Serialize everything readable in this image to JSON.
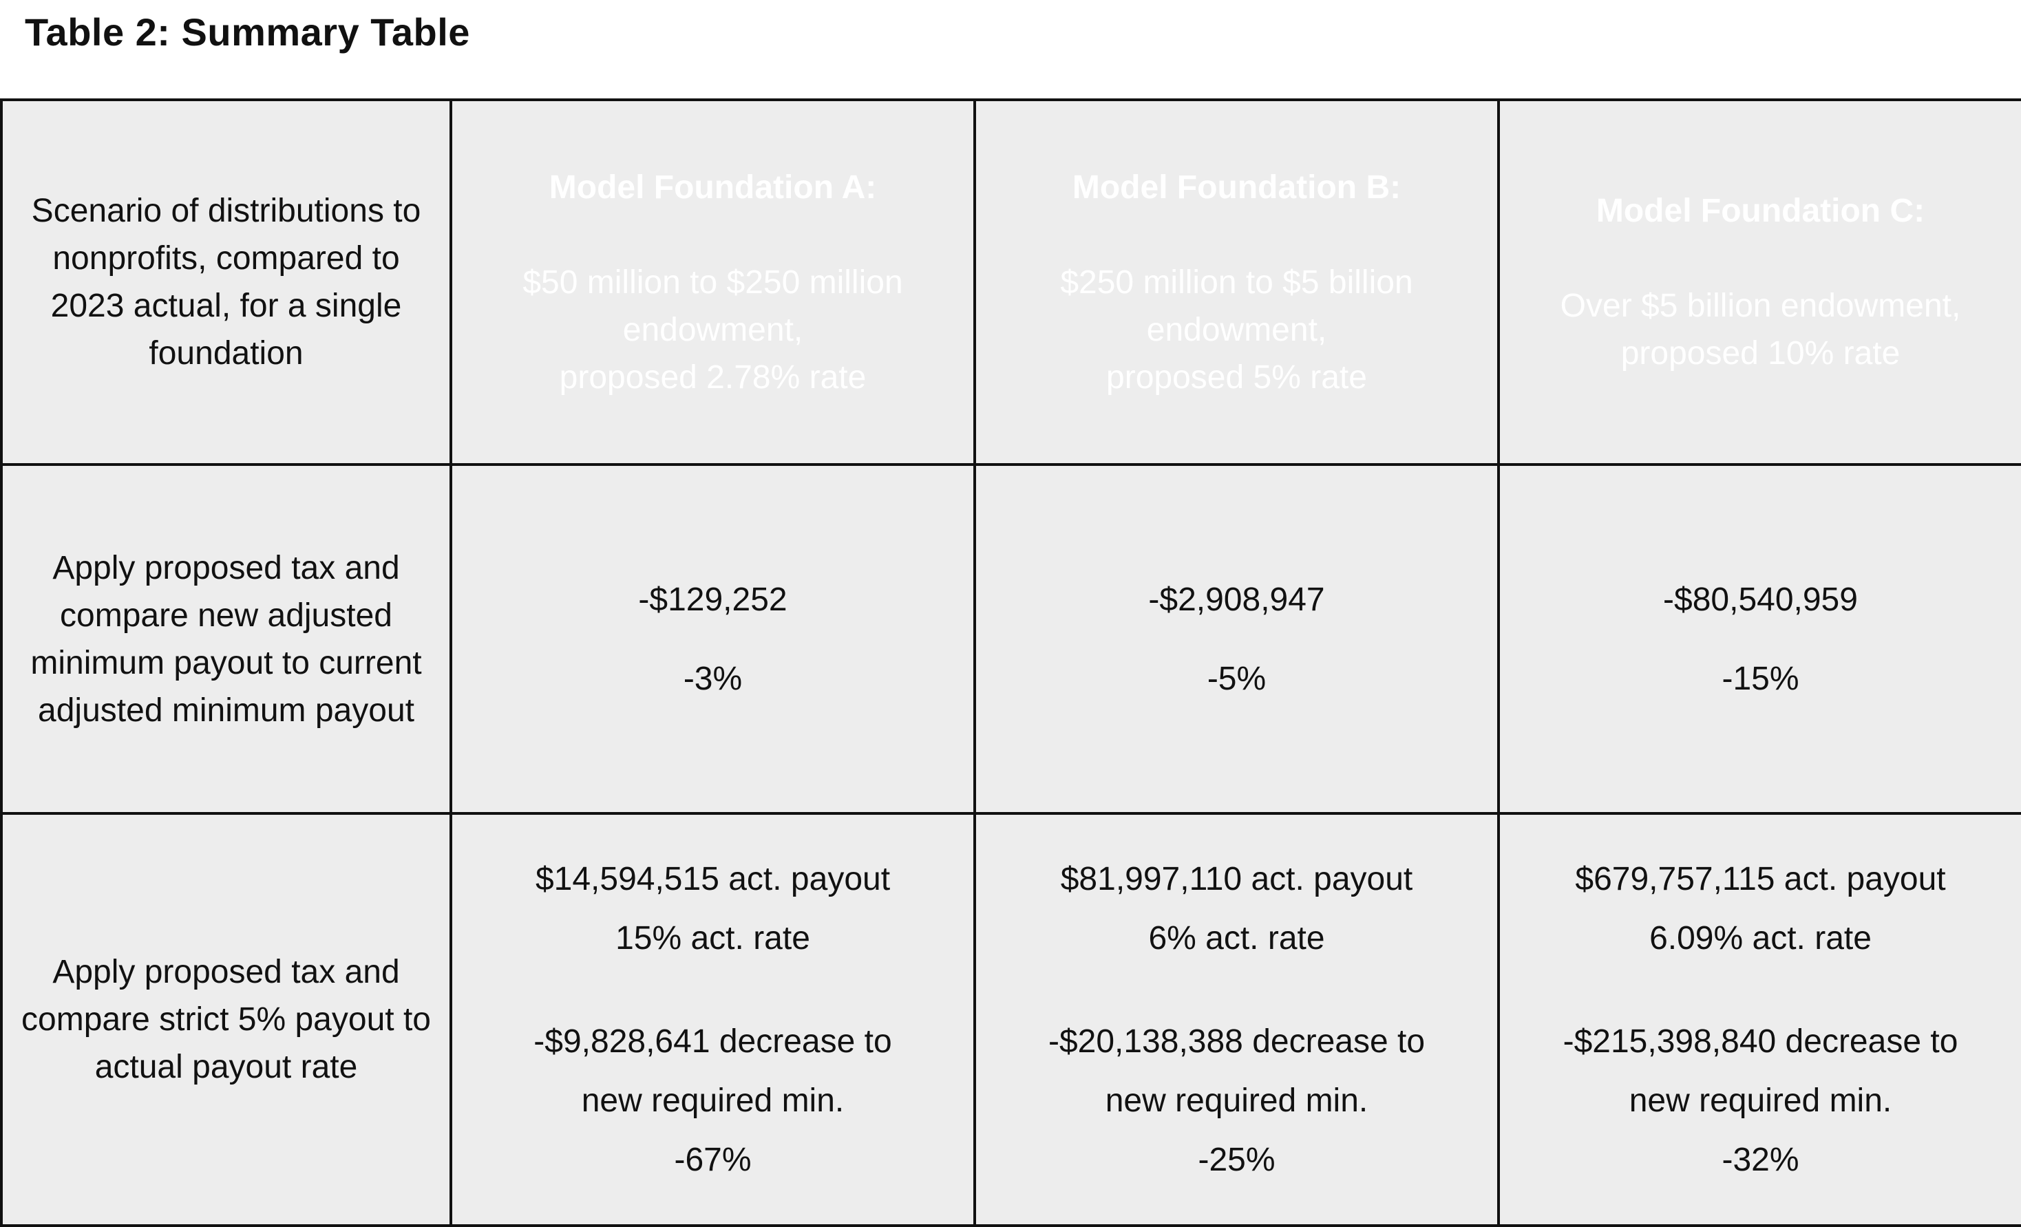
{
  "caption": "Table 2: Summary Table",
  "header": {
    "row_label": "Scenario of distributions to nonprofits, compared to 2023 actual, for a single foundation",
    "columns": [
      {
        "title": "Model Foundation A:",
        "line1": "$50 million to $250 million",
        "line2": "endowment,",
        "line3": "proposed 2.78% rate"
      },
      {
        "title": "Model Foundation B:",
        "line1": "$250 million to $5 billion",
        "line2": "endowment,",
        "line3": "proposed 5% rate"
      },
      {
        "title": "Model Foundation C:",
        "line1": "Over $5 billion endowment,",
        "line2": "proposed 10% rate"
      }
    ]
  },
  "rows": [
    {
      "label": "Apply proposed tax and compare new adjusted minimum payout to current adjusted minimum payout",
      "cells": [
        {
          "amount": "-$129,252",
          "percent": "-3%"
        },
        {
          "amount": "-$2,908,947",
          "percent": "-5%"
        },
        {
          "amount": "-$80,540,959",
          "percent": "-15%"
        }
      ]
    },
    {
      "label": "Apply proposed tax and compare strict 5% payout to actual payout rate",
      "cells": [
        {
          "payout": "$14,594,515 act. payout",
          "rate": "15% act. rate",
          "decrease": "-$9,828,641 decrease to",
          "required": "new required min.",
          "percent": "-67%"
        },
        {
          "payout": "$81,997,110 act. payout",
          "rate": "6% act. rate",
          "decrease": "-$20,138,388 decrease to",
          "required": "new required min.",
          "percent": "-25%"
        },
        {
          "payout": "$679,757,115 act. payout",
          "rate": "6.09% act. rate",
          "decrease": "-$215,398,840 decrease to",
          "required": "new required min.",
          "percent": "-32%"
        }
      ]
    }
  ],
  "colors": {
    "header_blue": "#0061a8",
    "cell_gray": "#ededed",
    "border": "#111111",
    "header_text": "#ffffff"
  }
}
